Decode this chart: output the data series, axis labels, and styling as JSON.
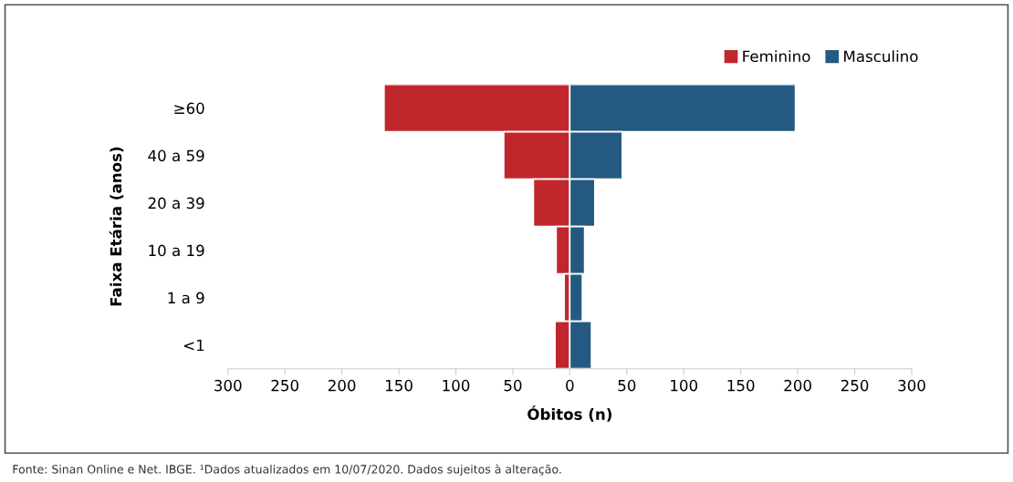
{
  "chart_data": {
    "type": "bar",
    "orientation": "horizontal",
    "stacked": true,
    "xlabel": "Óbitos (n)",
    "ylabel": "Faixa Etária (anos)",
    "categories": [
      "≥60",
      "40 a 59",
      "20 a 39",
      "10 a 19",
      "1 a 9",
      "<1"
    ],
    "series": [
      {
        "name": "Feminino",
        "color": "#c0272d",
        "values": [
          -163,
          -58,
          -32,
          -12,
          -5,
          -13
        ]
      },
      {
        "name": "Masculino",
        "color": "#245a82",
        "values": [
          198,
          46,
          22,
          13,
          11,
          19
        ]
      }
    ],
    "xlim": [
      -300,
      300
    ],
    "xticks": [
      {
        "value": -300,
        "label": "300"
      },
      {
        "value": -250,
        "label": "250"
      },
      {
        "value": -200,
        "label": "200"
      },
      {
        "value": -150,
        "label": "150"
      },
      {
        "value": -100,
        "label": "100"
      },
      {
        "value": -50,
        "label": "50"
      },
      0,
      50,
      100,
      150,
      200,
      250,
      300
    ],
    "legend": "top right",
    "grid": false,
    "annotations": [
      "Fonte: Sinan Online e Net. IBGE. ¹Dados atualizados em 10/07/2020. Dados sujeitos à alteração."
    ]
  }
}
